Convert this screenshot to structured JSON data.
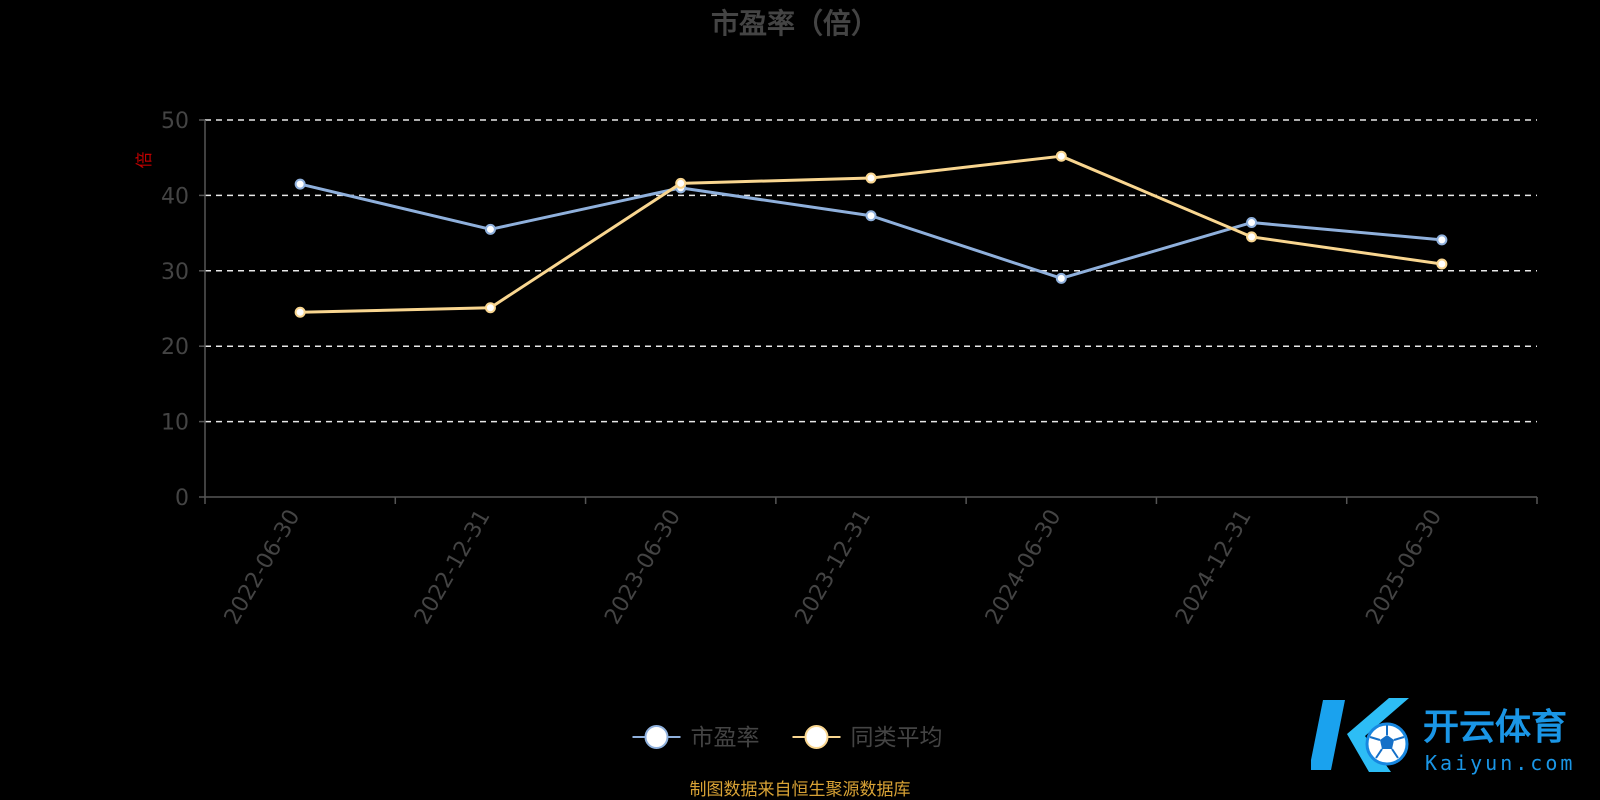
{
  "chart_data": {
    "type": "line",
    "title": "市盈率（倍）",
    "ylabel": "倍",
    "xlabel": "",
    "categories": [
      "2022-06-30",
      "2022-12-31",
      "2023-06-30",
      "2023-12-31",
      "2024-06-30",
      "2024-12-31",
      "2025-06-30"
    ],
    "ylim": [
      0,
      50
    ],
    "yticks": [
      0,
      10,
      20,
      30,
      40,
      50
    ],
    "grid": true,
    "legend_position": "bottom-center",
    "series": [
      {
        "name": "市盈率",
        "color": "#8fb0dc",
        "values": [
          41.5,
          35.5,
          41.0,
          37.3,
          29.0,
          36.4,
          34.1
        ]
      },
      {
        "name": "同类平均",
        "color": "#f9d690",
        "values": [
          24.5,
          25.1,
          41.6,
          42.3,
          45.2,
          34.5,
          30.9
        ]
      }
    ]
  },
  "source_note": "制图数据来自恒生聚源数据库",
  "colors": {
    "background": "#000000",
    "title": "#444444",
    "tick_label": "#444444",
    "y_unit": "#c00000",
    "grid": "#e8e8e8",
    "source_note": "#d8a235"
  },
  "watermark": {
    "logo_icon": "k-soccer-ball-logo-icon",
    "brand_text": "开云体育",
    "brand_url": "Kaiyun.com"
  }
}
